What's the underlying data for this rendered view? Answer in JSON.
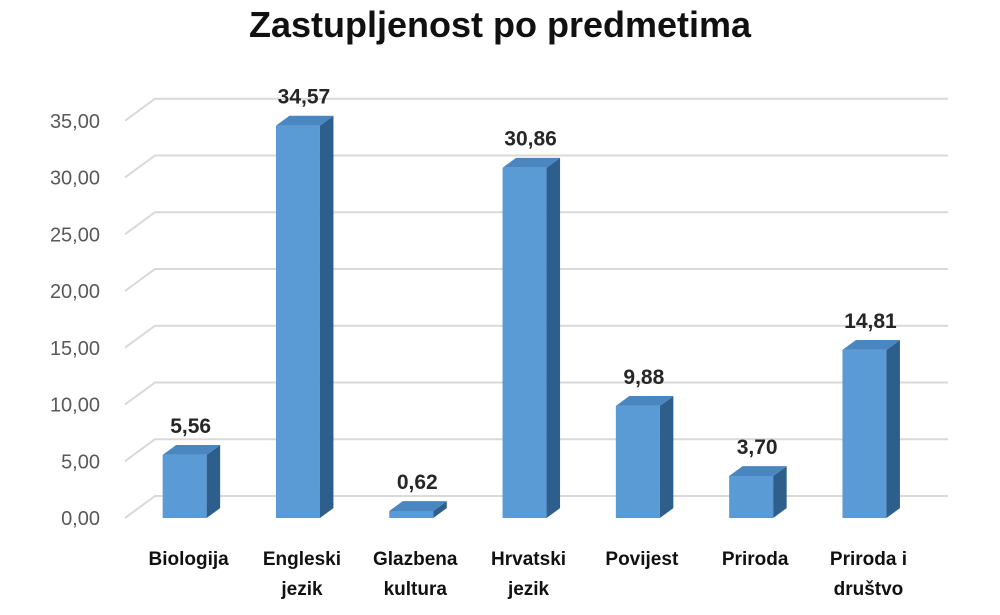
{
  "chart_data": {
    "type": "bar",
    "title": "Zastupljenost po predmetima",
    "categories": [
      "Biologija",
      "Engleski jezik",
      "Glazbena kultura",
      "Hrvatski jezik",
      "Povijest",
      "Priroda",
      "Priroda i društvo"
    ],
    "category_lines": [
      [
        "Biologija"
      ],
      [
        "Engleski",
        "jezik"
      ],
      [
        "Glazbena",
        "kultura"
      ],
      [
        "Hrvatski",
        "jezik"
      ],
      [
        "Povijest"
      ],
      [
        "Priroda"
      ],
      [
        "Priroda i",
        "društvo"
      ]
    ],
    "values": [
      5.56,
      34.57,
      0.62,
      30.86,
      9.88,
      3.7,
      14.81
    ],
    "value_labels": [
      "5,56",
      "34,57",
      "0,62",
      "30,86",
      "9,88",
      "3,70",
      "14,81"
    ],
    "y_ticks": [
      "0,00",
      "5,00",
      "10,00",
      "15,00",
      "20,00",
      "25,00",
      "30,00",
      "35,00"
    ],
    "ylim": [
      0,
      35
    ],
    "grid": true,
    "style": "3d-column",
    "colors": {
      "bar_front": "#5B9BD5",
      "bar_side": "#2E5F8C",
      "bar_top": "#4A87C0",
      "grid": "#D9D9D9"
    }
  }
}
